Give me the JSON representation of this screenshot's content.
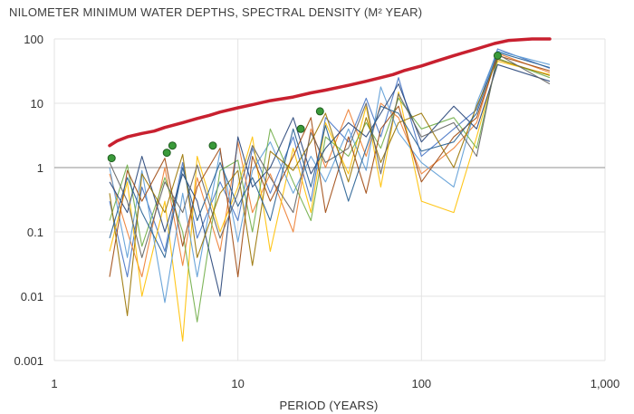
{
  "chart_data": {
    "type": "line",
    "title": "NILOMETER MINIMUM WATER DEPTHS, SPECTRAL DENSITY (M² YEAR)",
    "xlabel": "PERIOD (YEARS)",
    "ylabel": "",
    "x_scale": "log",
    "y_scale": "log",
    "xlim": [
      1,
      1000
    ],
    "ylim": [
      0.001,
      100
    ],
    "x_ticks": [
      "1",
      "10",
      "100",
      "1,000"
    ],
    "y_ticks": [
      "0.001",
      "0.01",
      "0.1",
      "1",
      "10",
      "100"
    ],
    "grid": "vertical-and-horizontal",
    "reference_line": {
      "y": 1,
      "color": "#a6a6a6"
    },
    "colors": {
      "threshold": "#c8202f",
      "peaks": "#3a9a3a",
      "series": [
        "#4472c4",
        "#ed7d31",
        "#ffc000",
        "#5b9bd5",
        "#70ad47",
        "#264478",
        "#9e480e",
        "#997300",
        "#636363",
        "#255e91"
      ]
    },
    "threshold_line": {
      "x": [
        2.0,
        2.2,
        2.5,
        3.0,
        3.5,
        4.0,
        5.0,
        6.0,
        7.0,
        8.0,
        10.0,
        12.0,
        15.0,
        20.0,
        25.0,
        30.0,
        40.0,
        50.0,
        60.0,
        70.0,
        80.0,
        100.0,
        120.0,
        150.0,
        200.0,
        250.0,
        300.0,
        400.0,
        500.0
      ],
      "y": [
        2.2,
        2.6,
        3.0,
        3.4,
        3.7,
        4.2,
        5.0,
        5.8,
        6.5,
        7.3,
        8.5,
        9.5,
        11.0,
        12.5,
        14.5,
        16.0,
        19.0,
        22.0,
        25.0,
        28.0,
        32.0,
        38.0,
        45.0,
        55.0,
        70.0,
        85.0,
        95.0,
        100.0,
        100.0
      ]
    },
    "peak_points": {
      "x": [
        2.05,
        4.1,
        4.4,
        7.3,
        22.0,
        28.0,
        260.0
      ],
      "y": [
        1.4,
        1.7,
        2.2,
        2.2,
        4.0,
        7.5,
        55.0
      ]
    },
    "series": [
      {
        "values": [
          [
            2.0,
            0.3
          ],
          [
            2.5,
            0.02
          ],
          [
            3.0,
            0.5
          ],
          [
            4.0,
            0.05
          ],
          [
            5.0,
            1.2
          ],
          [
            6.0,
            0.08
          ],
          [
            8.0,
            0.6
          ],
          [
            10.0,
            0.15
          ],
          [
            12.0,
            2.0
          ],
          [
            15.0,
            0.4
          ],
          [
            20.0,
            3.0
          ],
          [
            25.0,
            0.3
          ],
          [
            30.0,
            6.0
          ],
          [
            40.0,
            2.5
          ],
          [
            50.0,
            12.0
          ],
          [
            60.0,
            3.0
          ],
          [
            75.0,
            25.0
          ],
          [
            100.0,
            1.5
          ],
          [
            150.0,
            4.0
          ],
          [
            200.0,
            8.0
          ],
          [
            260.0,
            70.0
          ],
          [
            500.0,
            35.0
          ]
        ]
      },
      {
        "values": [
          [
            2.0,
            0.8
          ],
          [
            2.5,
            0.1
          ],
          [
            3.0,
            0.02
          ],
          [
            4.0,
            1.0
          ],
          [
            5.0,
            0.03
          ],
          [
            6.0,
            0.7
          ],
          [
            8.0,
            0.05
          ],
          [
            10.0,
            2.5
          ],
          [
            12.0,
            0.2
          ],
          [
            15.0,
            0.8
          ],
          [
            20.0,
            0.1
          ],
          [
            25.0,
            4.0
          ],
          [
            30.0,
            1.0
          ],
          [
            40.0,
            8.0
          ],
          [
            50.0,
            1.5
          ],
          [
            60.0,
            10.0
          ],
          [
            75.0,
            6.0
          ],
          [
            100.0,
            0.8
          ],
          [
            150.0,
            2.0
          ],
          [
            200.0,
            5.0
          ],
          [
            260.0,
            60.0
          ],
          [
            500.0,
            30.0
          ]
        ]
      },
      {
        "values": [
          [
            2.0,
            0.05
          ],
          [
            2.5,
            0.6
          ],
          [
            3.0,
            0.01
          ],
          [
            4.0,
            0.3
          ],
          [
            5.0,
            0.002
          ],
          [
            6.0,
            1.5
          ],
          [
            8.0,
            0.1
          ],
          [
            10.0,
            0.5
          ],
          [
            12.0,
            3.0
          ],
          [
            15.0,
            0.05
          ],
          [
            20.0,
            2.0
          ],
          [
            25.0,
            0.2
          ],
          [
            30.0,
            5.0
          ],
          [
            40.0,
            0.8
          ],
          [
            50.0,
            9.0
          ],
          [
            60.0,
            0.5
          ],
          [
            75.0,
            15.0
          ],
          [
            100.0,
            0.3
          ],
          [
            150.0,
            0.2
          ],
          [
            200.0,
            3.0
          ],
          [
            260.0,
            45.0
          ],
          [
            500.0,
            28.0
          ]
        ]
      },
      {
        "values": [
          [
            2.0,
            1.0
          ],
          [
            2.5,
            0.04
          ],
          [
            3.0,
            0.9
          ],
          [
            4.0,
            0.008
          ],
          [
            5.0,
            0.4
          ],
          [
            6.0,
            0.02
          ],
          [
            8.0,
            1.8
          ],
          [
            10.0,
            0.07
          ],
          [
            12.0,
            0.9
          ],
          [
            15.0,
            2.5
          ],
          [
            20.0,
            0.4
          ],
          [
            25.0,
            1.5
          ],
          [
            30.0,
            0.6
          ],
          [
            40.0,
            4.0
          ],
          [
            50.0,
            0.9
          ],
          [
            60.0,
            18.0
          ],
          [
            75.0,
            3.5
          ],
          [
            100.0,
            1.2
          ],
          [
            150.0,
            0.5
          ],
          [
            200.0,
            10.0
          ],
          [
            260.0,
            65.0
          ],
          [
            500.0,
            40.0
          ]
        ]
      },
      {
        "values": [
          [
            2.0,
            0.15
          ],
          [
            2.5,
            1.1
          ],
          [
            3.0,
            0.06
          ],
          [
            4.0,
            0.7
          ],
          [
            5.0,
            0.1
          ],
          [
            6.0,
            0.004
          ],
          [
            8.0,
            0.9
          ],
          [
            10.0,
            1.3
          ],
          [
            12.0,
            0.1
          ],
          [
            15.0,
            4.0
          ],
          [
            20.0,
            0.6
          ],
          [
            25.0,
            0.15
          ],
          [
            30.0,
            3.0
          ],
          [
            40.0,
            1.5
          ],
          [
            50.0,
            5.0
          ],
          [
            60.0,
            2.0
          ],
          [
            75.0,
            12.0
          ],
          [
            100.0,
            4.0
          ],
          [
            150.0,
            6.0
          ],
          [
            200.0,
            2.0
          ],
          [
            260.0,
            50.0
          ],
          [
            500.0,
            25.0
          ]
        ]
      },
      {
        "values": [
          [
            2.0,
            0.6
          ],
          [
            2.5,
            0.2
          ],
          [
            3.0,
            1.5
          ],
          [
            4.0,
            0.1
          ],
          [
            5.0,
            0.8
          ],
          [
            6.0,
            0.3
          ],
          [
            8.0,
            0.01
          ],
          [
            10.0,
            3.0
          ],
          [
            12.0,
            0.5
          ],
          [
            15.0,
            1.0
          ],
          [
            20.0,
            6.0
          ],
          [
            25.0,
            0.8
          ],
          [
            30.0,
            2.0
          ],
          [
            40.0,
            5.0
          ],
          [
            50.0,
            3.0
          ],
          [
            60.0,
            7.0
          ],
          [
            75.0,
            20.0
          ],
          [
            100.0,
            2.5
          ],
          [
            150.0,
            9.0
          ],
          [
            200.0,
            4.0
          ],
          [
            260.0,
            40.0
          ],
          [
            500.0,
            22.0
          ]
        ]
      },
      {
        "values": [
          [
            2.0,
            0.02
          ],
          [
            2.5,
            0.9
          ],
          [
            3.0,
            0.3
          ],
          [
            4.0,
            1.4
          ],
          [
            5.0,
            0.06
          ],
          [
            6.0,
            0.5
          ],
          [
            8.0,
            2.0
          ],
          [
            10.0,
            0.02
          ],
          [
            12.0,
            1.5
          ],
          [
            15.0,
            0.3
          ],
          [
            20.0,
            1.5
          ],
          [
            25.0,
            6.0
          ],
          [
            30.0,
            0.2
          ],
          [
            40.0,
            3.0
          ],
          [
            50.0,
            0.4
          ],
          [
            60.0,
            4.0
          ],
          [
            75.0,
            9.0
          ],
          [
            100.0,
            0.6
          ],
          [
            150.0,
            3.0
          ],
          [
            200.0,
            6.0
          ],
          [
            260.0,
            55.0
          ],
          [
            500.0,
            32.0
          ]
        ]
      },
      {
        "values": [
          [
            2.0,
            0.4
          ],
          [
            2.5,
            0.005
          ],
          [
            3.0,
            0.8
          ],
          [
            4.0,
            0.2
          ],
          [
            5.0,
            1.6
          ],
          [
            6.0,
            0.04
          ],
          [
            8.0,
            0.4
          ],
          [
            10.0,
            0.9
          ],
          [
            12.0,
            0.03
          ],
          [
            15.0,
            1.8
          ],
          [
            20.0,
            0.9
          ],
          [
            25.0,
            2.5
          ],
          [
            30.0,
            7.0
          ],
          [
            40.0,
            0.6
          ],
          [
            50.0,
            6.0
          ],
          [
            60.0,
            1.2
          ],
          [
            75.0,
            5.0
          ],
          [
            100.0,
            7.0
          ],
          [
            150.0,
            1.0
          ],
          [
            200.0,
            9.0
          ],
          [
            260.0,
            48.0
          ],
          [
            500.0,
            27.0
          ]
        ]
      },
      {
        "values": [
          [
            2.0,
            1.2
          ],
          [
            2.5,
            0.3
          ],
          [
            3.0,
            0.04
          ],
          [
            4.0,
            0.6
          ],
          [
            5.0,
            0.2
          ],
          [
            6.0,
            1.1
          ],
          [
            8.0,
            0.08
          ],
          [
            10.0,
            0.4
          ],
          [
            12.0,
            2.2
          ],
          [
            15.0,
            0.7
          ],
          [
            20.0,
            0.2
          ],
          [
            25.0,
            3.5
          ],
          [
            30.0,
            1.2
          ],
          [
            40.0,
            2.0
          ],
          [
            50.0,
            10.0
          ],
          [
            60.0,
            0.8
          ],
          [
            75.0,
            14.0
          ],
          [
            100.0,
            3.0
          ],
          [
            150.0,
            5.0
          ],
          [
            200.0,
            1.5
          ],
          [
            260.0,
            58.0
          ],
          [
            500.0,
            20.0
          ]
        ]
      },
      {
        "values": [
          [
            2.0,
            0.08
          ],
          [
            2.5,
            0.7
          ],
          [
            3.0,
            0.2
          ],
          [
            4.0,
            0.04
          ],
          [
            5.0,
            1.0
          ],
          [
            6.0,
            0.15
          ],
          [
            8.0,
            1.2
          ],
          [
            10.0,
            0.25
          ],
          [
            12.0,
            0.7
          ],
          [
            15.0,
            0.15
          ],
          [
            20.0,
            4.0
          ],
          [
            25.0,
            0.5
          ],
          [
            30.0,
            4.5
          ],
          [
            40.0,
            0.3
          ],
          [
            50.0,
            2.0
          ],
          [
            60.0,
            9.0
          ],
          [
            75.0,
            7.0
          ],
          [
            100.0,
            1.8
          ],
          [
            150.0,
            2.5
          ],
          [
            200.0,
            7.0
          ],
          [
            260.0,
            62.0
          ],
          [
            500.0,
            36.0
          ]
        ]
      }
    ]
  }
}
